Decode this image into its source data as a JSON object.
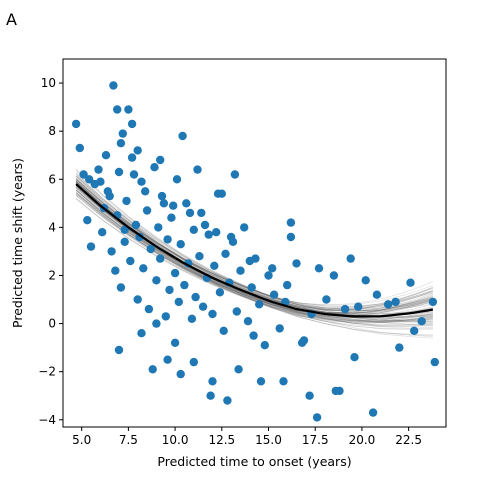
{
  "chart_data": {
    "type": "scatter",
    "panel_label": "A",
    "title": "",
    "xlabel": "Predicted time to onset (years)",
    "ylabel": "Predicted time shift (years)",
    "xlim": [
      4.0,
      24.5
    ],
    "ylim": [
      -4.3,
      11.0
    ],
    "xticks": [
      5.0,
      7.5,
      10.0,
      12.5,
      15.0,
      17.5,
      20.0,
      22.5
    ],
    "xtick_labels": [
      "5.0",
      "7.5",
      "10.0",
      "12.5",
      "15.0",
      "17.5",
      "20.0",
      "22.5"
    ],
    "yticks": [
      -4,
      -2,
      0,
      2,
      4,
      6,
      8,
      10
    ],
    "ytick_labels": [
      "−4",
      "−2",
      "0",
      "2",
      "4",
      "6",
      "8",
      "10"
    ],
    "grid": false,
    "colors": {
      "points": "#1f77b4",
      "fit": "#000000",
      "bootstrap": "#555555"
    },
    "fit_curve": {
      "x": [
        4.7,
        6.0,
        7.5,
        9.0,
        10.5,
        12.0,
        13.5,
        15.0,
        16.5,
        18.0,
        19.5,
        21.0,
        22.5,
        23.8
      ],
      "y": [
        5.8,
        4.9,
        4.0,
        3.2,
        2.5,
        1.9,
        1.4,
        0.95,
        0.6,
        0.4,
        0.3,
        0.3,
        0.42,
        0.58
      ]
    },
    "series": [
      {
        "x": [
          4.7,
          4.9,
          5.1,
          5.3,
          5.5,
          5.7,
          5.9,
          6.1,
          6.2,
          6.4,
          6.6,
          6.8,
          6.9,
          7.0,
          7.1,
          7.2,
          7.3,
          7.4,
          7.6,
          7.7,
          7.9,
          8.0,
          8.1,
          8.2,
          8.3,
          8.5,
          8.6,
          8.7,
          8.9,
          9.0,
          9.1,
          9.2,
          9.3,
          9.5,
          9.6,
          9.7,
          9.8,
          10.0,
          10.1,
          10.2,
          10.3,
          10.5,
          10.6,
          10.7,
          10.9,
          11.0,
          11.1,
          11.3,
          11.4,
          11.5,
          11.7,
          11.8,
          12.0,
          12.1,
          12.3,
          12.4,
          12.6,
          12.7,
          12.9,
          13.1,
          13.3,
          13.5,
          13.7,
          13.9,
          14.1,
          14.3,
          14.5,
          14.8,
          15.0,
          15.3,
          15.6,
          15.9,
          16.2,
          16.5,
          16.9,
          17.3,
          17.7,
          18.1,
          18.6,
          19.1,
          19.6,
          20.2,
          20.8,
          21.4,
          22.0,
          22.6,
          23.2,
          23.8,
          6.7,
          6.9,
          7.5,
          7.7,
          8.0,
          9.2,
          10.4,
          11.2,
          12.5,
          13.2,
          16.2,
          18.5,
          6.3,
          7.1,
          7.8,
          8.4,
          9.4,
          9.9,
          10.8,
          11.6,
          12.2,
          13.0,
          14.0,
          15.2,
          16.8,
          17.6,
          19.4,
          21.8,
          5.4,
          6.0,
          6.5,
          7.3,
          8.8,
          9.6,
          10.3,
          11.9,
          12.8,
          14.6,
          15.8,
          17.2,
          18.8,
          20.6,
          22.8,
          23.9,
          7.0,
          8.2,
          9.0,
          10.0,
          11.0,
          12.0,
          13.4,
          14.2,
          16.0,
          19.8
        ],
        "y": [
          8.3,
          7.3,
          6.2,
          4.3,
          3.2,
          5.8,
          6.4,
          3.8,
          4.8,
          5.5,
          3.0,
          2.2,
          4.5,
          6.3,
          1.5,
          7.9,
          3.4,
          5.1,
          2.6,
          6.9,
          4.1,
          1.0,
          3.6,
          5.9,
          2.3,
          4.7,
          0.6,
          3.1,
          6.5,
          1.8,
          4.0,
          2.7,
          5.3,
          0.3,
          3.5,
          1.4,
          4.4,
          2.1,
          6.0,
          0.9,
          3.3,
          1.6,
          5.0,
          2.5,
          0.2,
          3.9,
          1.1,
          2.8,
          4.6,
          0.7,
          1.9,
          3.7,
          0.4,
          2.4,
          5.4,
          1.3,
          -0.3,
          2.9,
          1.7,
          3.4,
          0.5,
          2.2,
          4.0,
          0.1,
          1.5,
          2.7,
          0.8,
          -0.9,
          2.0,
          1.2,
          -0.2,
          0.9,
          4.2,
          2.5,
          -0.7,
          0.4,
          2.3,
          1.0,
          -2.8,
          0.6,
          -1.4,
          1.8,
          1.2,
          0.8,
          -1.0,
          1.7,
          0.1,
          0.9,
          9.9,
          8.9,
          8.9,
          8.3,
          7.2,
          6.8,
          7.8,
          6.4,
          5.4,
          6.2,
          3.6,
          2.0,
          7.0,
          7.5,
          6.2,
          5.5,
          5.0,
          4.9,
          4.6,
          4.1,
          3.8,
          3.6,
          2.6,
          2.3,
          -0.8,
          -3.9,
          2.7,
          0.9,
          6.0,
          5.9,
          5.3,
          3.9,
          -1.9,
          -1.5,
          -2.1,
          -3.0,
          -3.2,
          -2.4,
          -2.4,
          -3.0,
          -2.8,
          -3.7,
          -0.3,
          -1.6,
          -1.1,
          -0.4,
          0.0,
          -0.8,
          -1.6,
          -2.4,
          -1.9,
          -0.5,
          1.6,
          0.7
        ]
      }
    ]
  }
}
